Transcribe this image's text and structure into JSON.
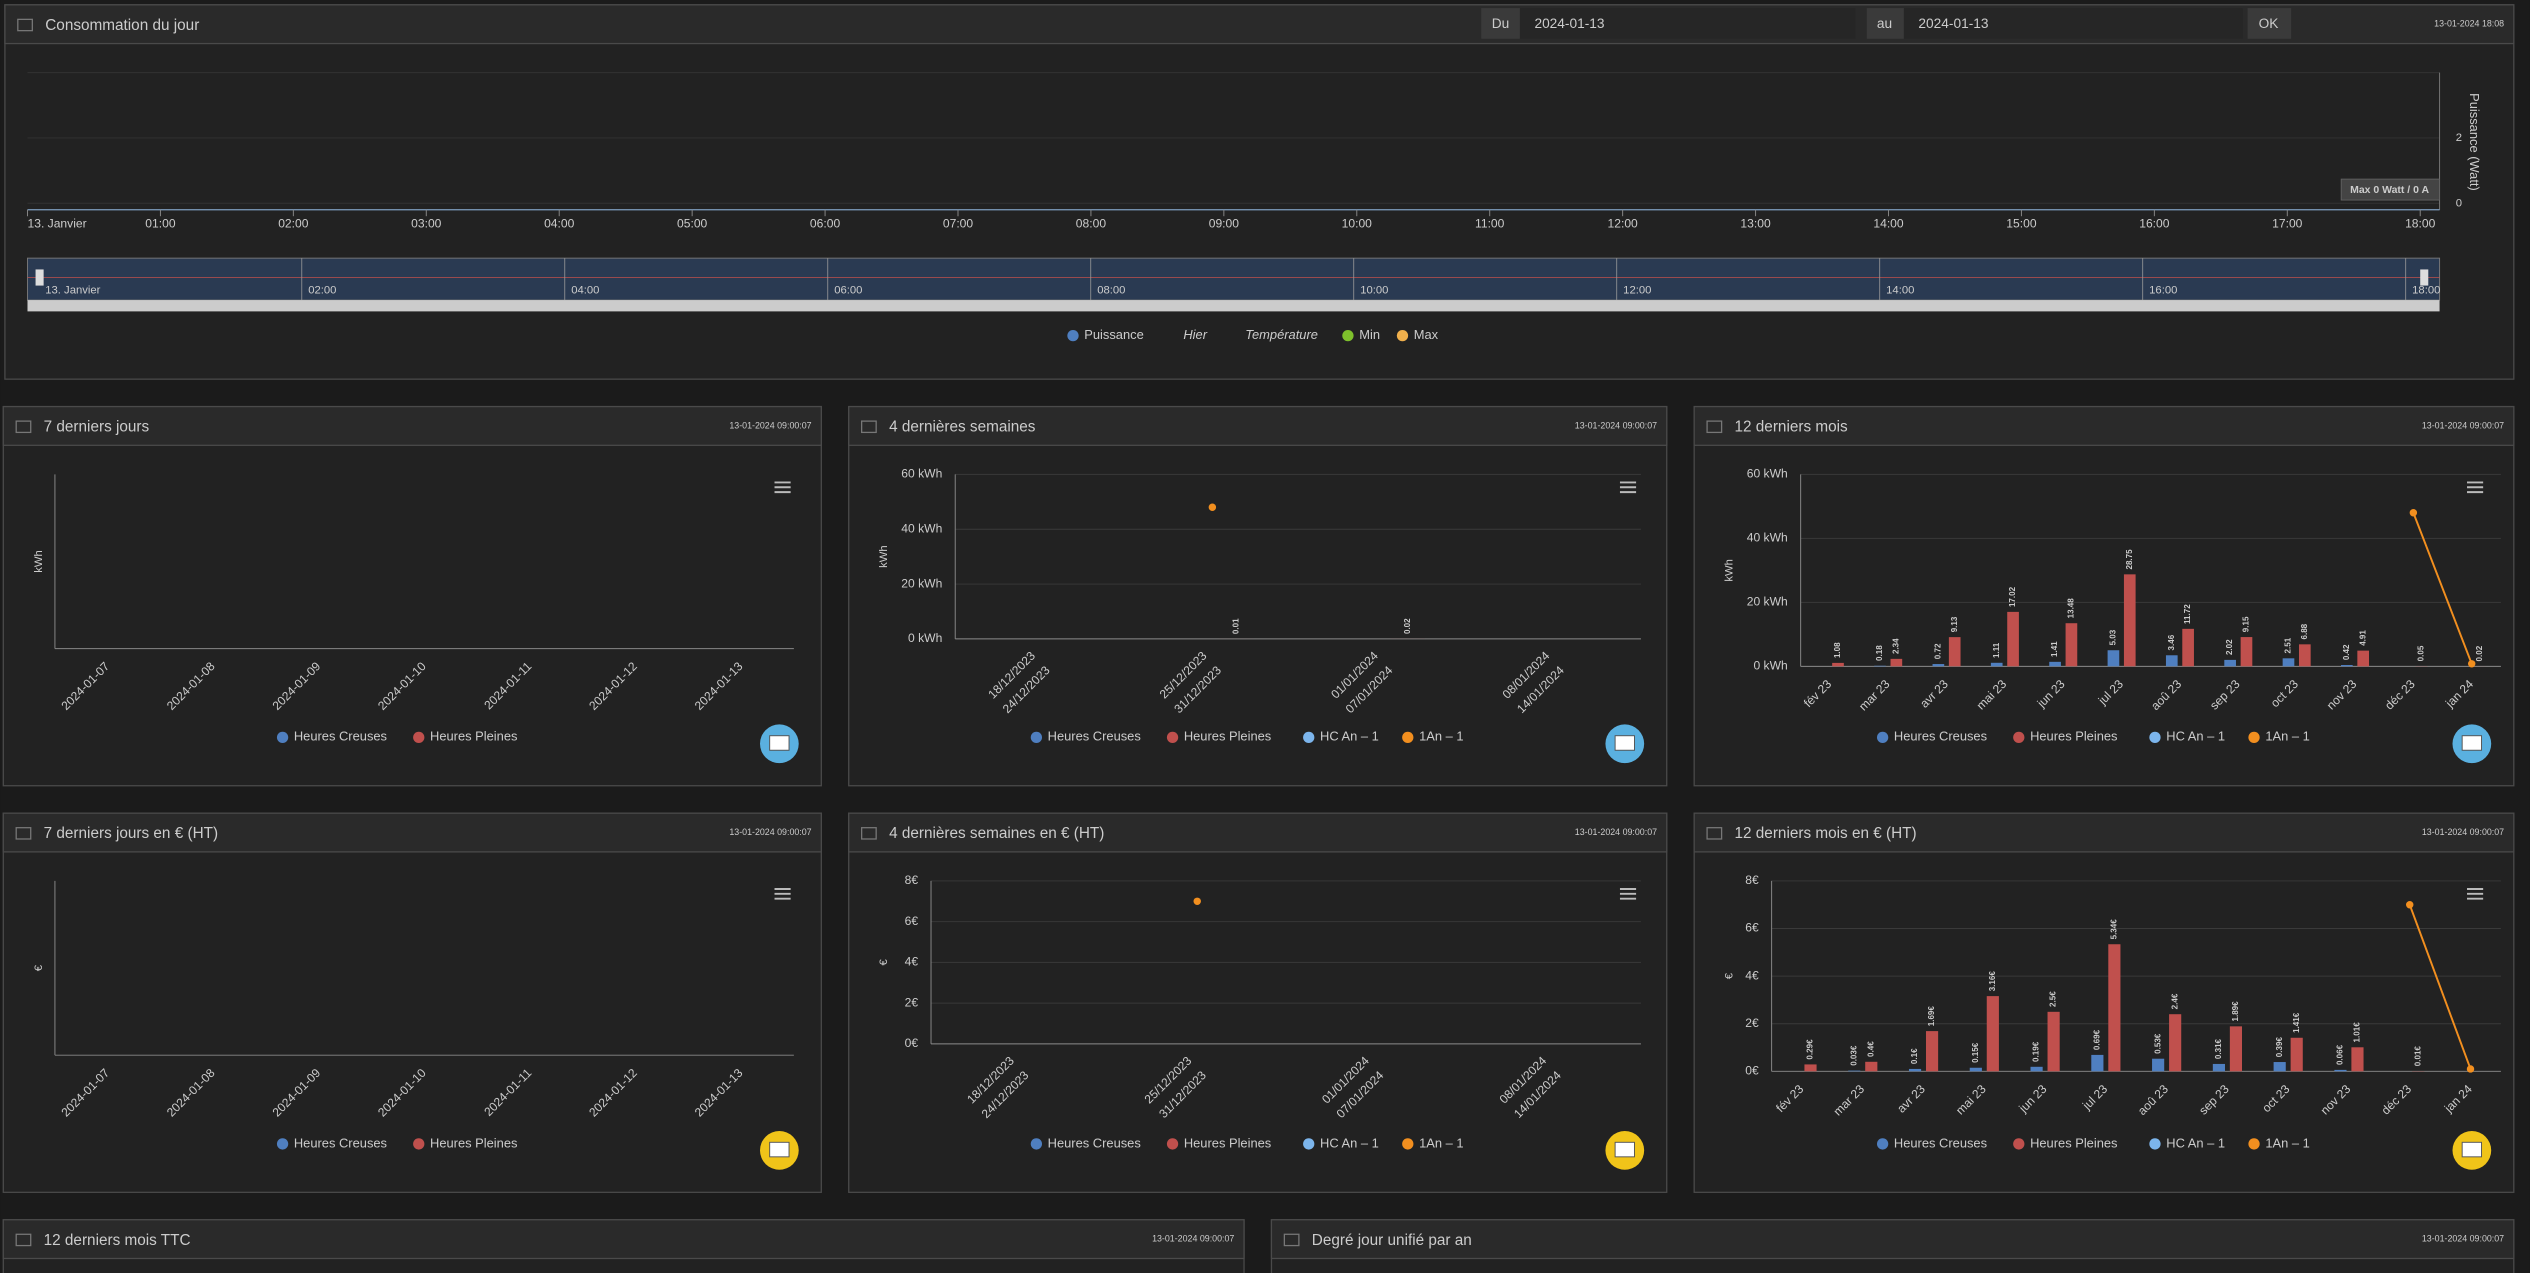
{
  "top_panel": {
    "title": "Consommation du jour",
    "timestamp": "13-01-2024 18:08",
    "from_label": "Du",
    "from_date": "2024-01-13",
    "to_label": "au",
    "to_date": "2024-01-13",
    "button": "OK",
    "chart_data": {
      "type": "line",
      "categories": [
        "13. Janvier",
        "01:00",
        "02:00",
        "03:00",
        "04:00",
        "05:00",
        "06:00",
        "07:00",
        "08:00",
        "09:00",
        "10:00",
        "11:00",
        "12:00",
        "13:00",
        "14:00",
        "15:00",
        "16:00",
        "17:00",
        "18:00"
      ],
      "y_label": "Puissance (Watt)",
      "ylim": [
        0,
        4
      ],
      "yticks": [
        0,
        2
      ],
      "tooltip": "Max 0 Watt / 0 A",
      "navigator_labels": [
        "13. Janvier",
        "02:00",
        "04:00",
        "06:00",
        "08:00",
        "10:00",
        "12:00",
        "14:00",
        "16:00",
        "18:00"
      ],
      "legend": [
        {
          "name": "Puissance",
          "color": "#4f7fc0"
        },
        {
          "name": "Hier"
        },
        {
          "name": "Température"
        },
        {
          "name": "Min",
          "color": "#7ec02c"
        },
        {
          "name": "Max",
          "color": "#f0b04c"
        }
      ]
    }
  },
  "panels": [
    {
      "title": "7 derniers jours",
      "timestamp": "13-01-2024 09:00:07",
      "chart_data": {
        "type": "bar",
        "y_label": "kWh",
        "categories": [
          "2024-01-07",
          "2024-01-08",
          "2024-01-09",
          "2024-01-10",
          "2024-01-11",
          "2024-01-12",
          "2024-01-13"
        ],
        "series": [
          {
            "name": "Heures Creuses",
            "color": "#4f7fc0",
            "kind": "bar",
            "values": [
              null,
              null,
              null,
              null,
              null,
              null,
              null
            ]
          },
          {
            "name": "Heures Pleines",
            "color": "#c0504d",
            "kind": "bar",
            "values": [
              null,
              null,
              null,
              null,
              null,
              null,
              null
            ]
          }
        ]
      }
    },
    {
      "title": "4 dernières semaines",
      "timestamp": "13-01-2024 09:00:07",
      "chart_data": {
        "type": "bar",
        "y_label": "kWh",
        "categories": [
          [
            "18/12/2023",
            "24/12/2023"
          ],
          [
            "25/12/2023",
            "31/12/2023"
          ],
          [
            "01/01/2024",
            "07/01/2024"
          ],
          [
            "08/01/2024",
            "14/01/2024"
          ]
        ],
        "ylim": [
          0,
          60
        ],
        "yticks": [
          {
            "value": 0,
            "label": "0 kWh"
          },
          {
            "value": 20,
            "label": "20 kWh"
          },
          {
            "value": 40,
            "label": "40 kWh"
          },
          {
            "value": 60,
            "label": "60 kWh"
          }
        ],
        "series": [
          {
            "name": "Heures Creuses",
            "color": "#4f7fc0",
            "kind": "bar",
            "values": [
              null,
              null,
              null,
              null
            ]
          },
          {
            "name": "Heures Pleines",
            "color": "#c0504d",
            "kind": "bar",
            "values": [
              null,
              0.01,
              0.02,
              null
            ]
          },
          {
            "name": "HC An – 1",
            "color": "#7cb5ec",
            "kind": "line",
            "values": [
              null,
              null,
              null,
              null
            ]
          },
          {
            "name": "1An – 1",
            "color": "#f28f1f",
            "kind": "line",
            "values": [
              null,
              48,
              null,
              null
            ]
          }
        ]
      }
    },
    {
      "title": "12 derniers mois",
      "timestamp": "13-01-2024 09:00:07",
      "chart_data": {
        "type": "bar",
        "y_label": "kWh",
        "categories": [
          "fév 23",
          "mar 23",
          "avr 23",
          "mai 23",
          "jun 23",
          "jul 23",
          "aoû 23",
          "sep 23",
          "oct 23",
          "nov 23",
          "déc 23",
          "jan 24"
        ],
        "ylim": [
          0,
          60
        ],
        "yticks": [
          {
            "value": 0,
            "label": "0 kWh"
          },
          {
            "value": 20,
            "label": "20 kWh"
          },
          {
            "value": 40,
            "label": "40 kWh"
          },
          {
            "value": 60,
            "label": "60 kWh"
          }
        ],
        "series": [
          {
            "name": "Heures Creuses",
            "color": "#4f7fc0",
            "kind": "bar",
            "values": [
              null,
              0.18,
              0.72,
              1.11,
              1.41,
              5.03,
              3.46,
              2.02,
              2.51,
              0.42,
              null,
              null
            ]
          },
          {
            "name": "Heures Pleines",
            "color": "#c0504d",
            "kind": "bar",
            "values": [
              1.08,
              2.34,
              9.13,
              17.02,
              13.48,
              28.75,
              11.72,
              9.15,
              6.88,
              4.91,
              0.05,
              0.02
            ]
          },
          {
            "name": "HC An – 1",
            "color": "#7cb5ec",
            "kind": "line",
            "values": [
              null,
              null,
              null,
              null,
              null,
              null,
              null,
              null,
              null,
              null,
              null,
              null
            ]
          },
          {
            "name": "1An – 1",
            "color": "#f28f1f",
            "kind": "line",
            "values": [
              null,
              null,
              null,
              null,
              null,
              null,
              null,
              null,
              null,
              null,
              48,
              0.8
            ]
          }
        ]
      }
    },
    {
      "title": "7 derniers jours en € (HT)",
      "timestamp": "13-01-2024 09:00:07",
      "chart_data": {
        "type": "bar",
        "y_label": "€",
        "categories": [
          "2024-01-07",
          "2024-01-08",
          "2024-01-09",
          "2024-01-10",
          "2024-01-11",
          "2024-01-12",
          "2024-01-13"
        ],
        "series": [
          {
            "name": "Heures Creuses",
            "color": "#4f7fc0",
            "kind": "bar",
            "values": [
              null,
              null,
              null,
              null,
              null,
              null,
              null
            ]
          },
          {
            "name": "Heures Pleines",
            "color": "#c0504d",
            "kind": "bar",
            "values": [
              null,
              null,
              null,
              null,
              null,
              null,
              null
            ]
          }
        ]
      }
    },
    {
      "title": "4 dernières semaines en € (HT)",
      "timestamp": "13-01-2024 09:00:07",
      "chart_data": {
        "type": "bar",
        "y_label": "€",
        "categories": [
          [
            "18/12/2023",
            "24/12/2023"
          ],
          [
            "25/12/2023",
            "31/12/2023"
          ],
          [
            "01/01/2024",
            "07/01/2024"
          ],
          [
            "08/01/2024",
            "14/01/2024"
          ]
        ],
        "ylim": [
          0,
          8
        ],
        "yticks": [
          {
            "value": 0,
            "label": "0€"
          },
          {
            "value": 2,
            "label": "2€"
          },
          {
            "value": 4,
            "label": "4€"
          },
          {
            "value": 6,
            "label": "6€"
          },
          {
            "value": 8,
            "label": "8€"
          }
        ],
        "series": [
          {
            "name": "Heures Creuses",
            "color": "#4f7fc0",
            "kind": "bar",
            "values": [
              null,
              null,
              null,
              null
            ]
          },
          {
            "name": "Heures Pleines",
            "color": "#c0504d",
            "kind": "bar",
            "values": [
              null,
              null,
              null,
              null
            ]
          },
          {
            "name": "HC An – 1",
            "color": "#7cb5ec",
            "kind": "line",
            "values": [
              null,
              null,
              null,
              null
            ]
          },
          {
            "name": "1An – 1",
            "color": "#f28f1f",
            "kind": "line",
            "values": [
              null,
              7,
              null,
              null
            ]
          }
        ]
      }
    },
    {
      "title": "12 derniers mois en € (HT)",
      "timestamp": "13-01-2024 09:00:07",
      "chart_data": {
        "type": "bar",
        "y_label": "€",
        "categories": [
          "fév 23",
          "mar 23",
          "avr 23",
          "mai 23",
          "jun 23",
          "jul 23",
          "aoû 23",
          "sep 23",
          "oct 23",
          "nov 23",
          "déc 23",
          "jan 24"
        ],
        "ylim": [
          0,
          8
        ],
        "yticks": [
          {
            "value": 0,
            "label": "0€"
          },
          {
            "value": 2,
            "label": "2€"
          },
          {
            "value": 4,
            "label": "4€"
          },
          {
            "value": 6,
            "label": "6€"
          },
          {
            "value": 8,
            "label": "8€"
          }
        ],
        "series": [
          {
            "name": "Heures Creuses",
            "color": "#4f7fc0",
            "kind": "bar",
            "values": [
              null,
              0.03,
              0.1,
              0.15,
              0.19,
              0.69,
              0.53,
              0.31,
              0.39,
              0.06,
              null,
              null
            ],
            "value_labels": [
              null,
              "0.03€",
              "0.1€",
              "0.15€",
              "0.19€",
              "0.69€",
              "0.53€",
              "0.31€",
              "0.39€",
              "0.06€",
              null,
              null
            ]
          },
          {
            "name": "Heures Pleines",
            "color": "#c0504d",
            "kind": "bar",
            "values": [
              0.29,
              0.4,
              1.69,
              3.16,
              2.5,
              5.34,
              2.4,
              1.89,
              1.41,
              1.01,
              0.01,
              null
            ],
            "value_labels": [
              "0.29€",
              "0.4€",
              "1.69€",
              "3.16€",
              "2.5€",
              "5.34€",
              "2.4€",
              "1.89€",
              "1.41€",
              "1.01€",
              "0.01€",
              null
            ]
          },
          {
            "name": "HC An – 1",
            "color": "#7cb5ec",
            "kind": "line",
            "values": [
              null,
              null,
              null,
              null,
              null,
              null,
              null,
              null,
              null,
              null,
              null,
              null
            ]
          },
          {
            "name": "1An – 1",
            "color": "#f28f1f",
            "kind": "line",
            "values": [
              null,
              null,
              null,
              null,
              null,
              null,
              null,
              null,
              null,
              null,
              7,
              0.1
            ]
          }
        ]
      }
    },
    {
      "title": "12 derniers mois TTC",
      "timestamp": "13-01-2024 09:00:07"
    },
    {
      "title": "Degré jour unifié par an",
      "timestamp": "13-01-2024 09:00:07"
    }
  ]
}
